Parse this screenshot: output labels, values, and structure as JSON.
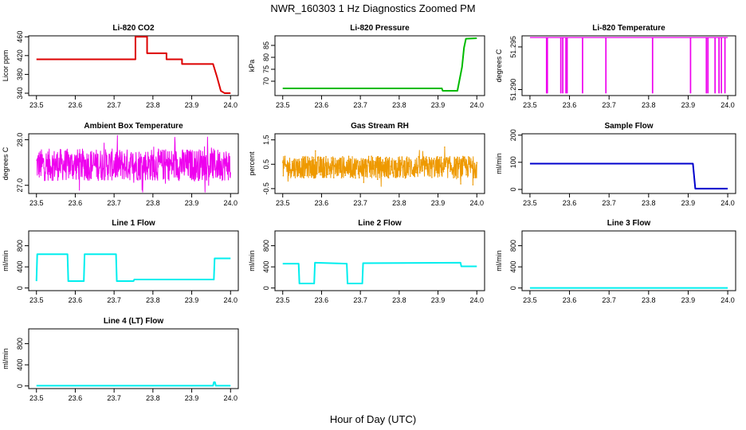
{
  "figure": {
    "title": "NWR_160303  1 Hz Diagnostics Zoomed PM",
    "xlabel": "Hour of Day (UTC)"
  },
  "chart_data": [
    {
      "id": "co2",
      "type": "line",
      "title": "Li-820 CO2",
      "ylabel": "Licor ppm",
      "color": "#dd0000",
      "xlim": [
        23.5,
        24.0
      ],
      "ylim": [
        335,
        462
      ],
      "xticks": [
        "23.5",
        "23.6",
        "23.7",
        "23.8",
        "23.9",
        "24.0"
      ],
      "yticks": [
        "340",
        "380",
        "420",
        "460"
      ],
      "ytick_values": [
        340,
        380,
        420,
        460
      ],
      "x": [
        23.5,
        23.755,
        23.755,
        23.785,
        23.785,
        23.835,
        23.835,
        23.875,
        23.875,
        23.955,
        23.965,
        23.975,
        23.985,
        24.0
      ],
      "y": [
        412,
        412,
        460,
        460,
        425,
        425,
        412,
        412,
        402,
        402,
        375,
        345,
        340,
        340
      ]
    },
    {
      "id": "pressure",
      "type": "line",
      "title": "Li-820 Pressure",
      "ylabel": "kPa",
      "color": "#00bb00",
      "xlim": [
        23.5,
        24.0
      ],
      "ylim": [
        64,
        89
      ],
      "xticks": [
        "23.5",
        "23.6",
        "23.7",
        "23.8",
        "23.9",
        "24.0"
      ],
      "yticks": [
        "70",
        "75",
        "80",
        "85"
      ],
      "ytick_values": [
        70,
        75,
        80,
        85
      ],
      "x": [
        23.5,
        23.91,
        23.912,
        23.95,
        23.962,
        23.967,
        23.972,
        24.0
      ],
      "y": [
        67.0,
        67.0,
        66.0,
        66.0,
        76,
        84,
        87.8,
        88.0
      ]
    },
    {
      "id": "licor_temp",
      "type": "line",
      "title": "Li-820 Temperature",
      "ylabel": "degrees C",
      "color": "#ee00ee",
      "xlim": [
        23.5,
        24.0
      ],
      "ylim": [
        51.2893,
        51.2963
      ],
      "xticks": [
        "23.5",
        "23.6",
        "23.7",
        "23.8",
        "23.9",
        "24.0"
      ],
      "yticks": [
        "51.290",
        "51.295"
      ],
      "ytick_values": [
        51.29,
        51.295
      ],
      "baseline": 51.2961,
      "low_value": 51.2896,
      "spike_x": [
        23.542,
        23.544,
        23.578,
        23.583,
        23.591,
        23.594,
        23.633,
        23.692,
        23.81,
        23.906,
        23.946,
        23.95,
        23.968,
        23.978,
        23.984,
        23.993
      ],
      "extra": [
        {
          "x": 23.542,
          "y": 51.2955
        },
        {
          "x": 23.946,
          "y": 51.2935
        }
      ]
    },
    {
      "id": "box_temp",
      "type": "line",
      "title": "Ambient Box Temperature",
      "ylabel": "degrees C",
      "color": "#ee00ee",
      "xlim": [
        23.5,
        24.0
      ],
      "ylim": [
        26.82,
        28.13
      ],
      "xticks": [
        "23.5",
        "23.6",
        "23.7",
        "23.8",
        "23.9",
        "24.0"
      ],
      "yticks": [
        "27.0",
        "28.0"
      ],
      "ytick_values": [
        27.0,
        28.0
      ],
      "mean": 27.45,
      "noise_amplitude": 0.35,
      "clip": [
        26.85,
        28.12
      ]
    },
    {
      "id": "rh",
      "type": "line",
      "title": "Gas Stream RH",
      "ylabel": "percent",
      "color": "#ee9900",
      "xlim": [
        23.5,
        24.0
      ],
      "ylim": [
        -0.7,
        1.75
      ],
      "xticks": [
        "23.5",
        "23.6",
        "23.7",
        "23.8",
        "23.9",
        "24.0"
      ],
      "yticks": [
        "-0.5",
        "0.5",
        "1.5"
      ],
      "ytick_values": [
        -0.5,
        0.5,
        1.5
      ],
      "mean": 0.38,
      "noise_amplitude": 0.45,
      "clip": [
        -0.68,
        1.72
      ]
    },
    {
      "id": "sample_flow",
      "type": "line",
      "title": "Sample Flow",
      "ylabel": "ml/min",
      "color": "#0000cc",
      "xlim": [
        23.5,
        24.0
      ],
      "ylim": [
        -15,
        205
      ],
      "xticks": [
        "23.5",
        "23.6",
        "23.7",
        "23.8",
        "23.9",
        "24.0"
      ],
      "yticks": [
        "0",
        "100",
        "200"
      ],
      "ytick_values": [
        0,
        100,
        200
      ],
      "x": [
        23.5,
        23.912,
        23.918,
        24.0
      ],
      "y": [
        95,
        95,
        3,
        3
      ]
    },
    {
      "id": "line1",
      "type": "line",
      "title": "Line 1 Flow",
      "ylabel": "ml/min",
      "color": "#00eeee",
      "xlim": [
        23.5,
        24.0
      ],
      "ylim": [
        -50,
        1080
      ],
      "xticks": [
        "23.5",
        "23.6",
        "23.7",
        "23.8",
        "23.9",
        "24.0"
      ],
      "yticks": [
        "0",
        "400",
        "800"
      ],
      "ytick_values": [
        0,
        400,
        800
      ],
      "x": [
        23.5,
        23.502,
        23.58,
        23.582,
        23.622,
        23.624,
        23.705,
        23.707,
        23.75,
        23.752,
        23.957,
        23.959,
        24.0
      ],
      "y": [
        130,
        640,
        640,
        130,
        130,
        640,
        640,
        130,
        130,
        160,
        160,
        560,
        560
      ]
    },
    {
      "id": "line2",
      "type": "line",
      "title": "Line 2 Flow",
      "ylabel": "ml/min",
      "color": "#00eeee",
      "xlim": [
        23.5,
        24.0
      ],
      "ylim": [
        -50,
        1080
      ],
      "xticks": [
        "23.5",
        "23.6",
        "23.7",
        "23.8",
        "23.9",
        "24.0"
      ],
      "yticks": [
        "0",
        "400",
        "800"
      ],
      "ytick_values": [
        0,
        400,
        800
      ],
      "x": [
        23.5,
        23.541,
        23.543,
        23.581,
        23.583,
        23.665,
        23.667,
        23.705,
        23.707,
        23.958,
        23.96,
        24.0
      ],
      "y": [
        460,
        460,
        85,
        85,
        480,
        460,
        85,
        85,
        470,
        480,
        410,
        410
      ]
    },
    {
      "id": "line3",
      "type": "line",
      "title": "Line 3 Flow",
      "ylabel": "ml/min",
      "color": "#00eeee",
      "xlim": [
        23.5,
        24.0
      ],
      "ylim": [
        -50,
        1080
      ],
      "xticks": [
        "23.5",
        "23.6",
        "23.7",
        "23.8",
        "23.9",
        "24.0"
      ],
      "yticks": [
        "0",
        "400",
        "800"
      ],
      "ytick_values": [
        0,
        400,
        800
      ],
      "x": [
        23.5,
        24.0
      ],
      "y": [
        0,
        0
      ]
    },
    {
      "id": "line4",
      "type": "line",
      "title": "Line 4 (LT) Flow",
      "ylabel": "ml/min",
      "color": "#00eeee",
      "xlim": [
        23.5,
        24.0
      ],
      "ylim": [
        -50,
        1080
      ],
      "xticks": [
        "23.5",
        "23.6",
        "23.7",
        "23.8",
        "23.9",
        "24.0"
      ],
      "yticks": [
        "0",
        "400",
        "800"
      ],
      "ytick_values": [
        0,
        400,
        800
      ],
      "x": [
        23.5,
        23.955,
        23.957,
        23.96,
        23.962,
        24.0
      ],
      "y": [
        5,
        5,
        70,
        70,
        5,
        5
      ]
    }
  ]
}
